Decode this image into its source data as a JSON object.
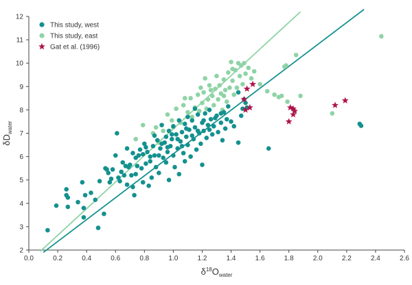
{
  "chart_data": {
    "type": "scatter",
    "title": "",
    "xlabel": {
      "main": "δ",
      "sup": "18",
      "main2": "O",
      "sub": "water"
    },
    "ylabel": {
      "main": "δD",
      "sub": "water"
    },
    "xlim": [
      0,
      2.6
    ],
    "ylim": [
      2,
      12
    ],
    "x_ticks": [
      "0.0",
      "0.2",
      "0.4",
      "0.6",
      "0.8",
      "1.0",
      "1.2",
      "1.4",
      "1.6",
      "1.8",
      "2.0",
      "2.2",
      "2.4",
      "2.6"
    ],
    "y_ticks": [
      "2",
      "3",
      "4",
      "5",
      "6",
      "7",
      "8",
      "9",
      "10",
      "11",
      "12"
    ],
    "grid": false,
    "legend_position": "top-left",
    "series": [
      {
        "name": "This study, west",
        "marker": "circle",
        "color": "#14918e",
        "points": [
          [
            0.13,
            2.85
          ],
          [
            0.19,
            3.9
          ],
          [
            0.26,
            4.6
          ],
          [
            0.26,
            4.35
          ],
          [
            0.27,
            3.85
          ],
          [
            0.27,
            4.25
          ],
          [
            0.37,
            4.9
          ],
          [
            0.38,
            3.4
          ],
          [
            0.39,
            4.35
          ],
          [
            0.34,
            4.05
          ],
          [
            0.38,
            3.8
          ],
          [
            0.43,
            4.45
          ],
          [
            0.48,
            2.95
          ],
          [
            0.49,
            4.95
          ],
          [
            0.52,
            3.55
          ],
          [
            0.53,
            5.5
          ],
          [
            0.54,
            5.45
          ],
          [
            0.55,
            5.3
          ],
          [
            0.56,
            4.9
          ],
          [
            0.58,
            5.45
          ],
          [
            0.6,
            6.05
          ],
          [
            0.61,
            7.0
          ],
          [
            0.62,
            5.1
          ],
          [
            0.63,
            4.95
          ],
          [
            0.64,
            5.35
          ],
          [
            0.66,
            5.2
          ],
          [
            0.67,
            5.6
          ],
          [
            0.68,
            6.35
          ],
          [
            0.68,
            4.8
          ],
          [
            0.7,
            5.65
          ],
          [
            0.71,
            5.2
          ],
          [
            0.72,
            4.7
          ],
          [
            0.73,
            4.35
          ],
          [
            0.74,
            5.95
          ],
          [
            0.75,
            5.6
          ],
          [
            0.76,
            6.05
          ],
          [
            0.77,
            6.3
          ],
          [
            0.78,
            5.5
          ],
          [
            0.79,
            4.9
          ],
          [
            0.8,
            6.55
          ],
          [
            0.81,
            5.7
          ],
          [
            0.82,
            6.2
          ],
          [
            0.83,
            4.75
          ],
          [
            0.84,
            6.0
          ],
          [
            0.85,
            5.1
          ],
          [
            0.86,
            6.45
          ],
          [
            0.87,
            6.9
          ],
          [
            0.88,
            5.55
          ],
          [
            0.89,
            6.7
          ],
          [
            0.9,
            6.05
          ],
          [
            0.9,
            5.3
          ],
          [
            0.91,
            6.35
          ],
          [
            0.92,
            7.35
          ],
          [
            0.93,
            5.95
          ],
          [
            0.94,
            6.6
          ],
          [
            0.95,
            6.85
          ],
          [
            0.95,
            5.75
          ],
          [
            0.96,
            6.2
          ],
          [
            0.97,
            7.1
          ],
          [
            0.97,
            5.0
          ],
          [
            0.98,
            6.45
          ],
          [
            0.99,
            6.75
          ],
          [
            1.0,
            7.3
          ],
          [
            1.0,
            6.05
          ],
          [
            1.01,
            5.55
          ],
          [
            1.02,
            6.95
          ],
          [
            1.03,
            6.35
          ],
          [
            1.04,
            7.55
          ],
          [
            1.04,
            5.25
          ],
          [
            1.05,
            6.65
          ],
          [
            1.06,
            7.05
          ],
          [
            1.07,
            6.15
          ],
          [
            1.08,
            7.4
          ],
          [
            1.08,
            5.8
          ],
          [
            1.09,
            6.85
          ],
          [
            1.1,
            7.7
          ],
          [
            1.1,
            6.5
          ],
          [
            1.11,
            7.15
          ],
          [
            1.12,
            6.0
          ],
          [
            1.13,
            7.55
          ],
          [
            1.14,
            6.75
          ],
          [
            1.15,
            8.05
          ],
          [
            1.15,
            7.25
          ],
          [
            1.16,
            6.3
          ],
          [
            1.17,
            7.8
          ],
          [
            1.18,
            7.0
          ],
          [
            1.19,
            6.55
          ],
          [
            1.2,
            7.45
          ],
          [
            1.2,
            5.65
          ],
          [
            1.21,
            7.1
          ],
          [
            1.22,
            7.85
          ],
          [
            1.23,
            6.8
          ],
          [
            1.24,
            7.35
          ],
          [
            1.25,
            8.0
          ],
          [
            1.26,
            7.6
          ],
          [
            1.27,
            6.95
          ],
          [
            1.28,
            7.3
          ],
          [
            1.3,
            7.75
          ],
          [
            1.31,
            7.05
          ],
          [
            1.33,
            7.45
          ],
          [
            1.34,
            6.7
          ],
          [
            1.35,
            7.9
          ],
          [
            1.36,
            7.2
          ],
          [
            1.38,
            8.15
          ],
          [
            1.4,
            7.5
          ],
          [
            1.42,
            7.3
          ],
          [
            1.45,
            6.6
          ],
          [
            1.47,
            7.75
          ],
          [
            1.48,
            8.05
          ],
          [
            1.49,
            8.45
          ],
          [
            1.5,
            8.3
          ],
          [
            1.51,
            8.1
          ],
          [
            1.45,
            8.75
          ],
          [
            1.66,
            6.35
          ],
          [
            2.29,
            7.4
          ],
          [
            2.3,
            7.32
          ],
          [
            0.46,
            4.15
          ],
          [
            0.57,
            5.05
          ],
          [
            0.65,
            5.75
          ],
          [
            0.69,
            5.55
          ],
          [
            0.72,
            6.15
          ],
          [
            0.74,
            5.25
          ],
          [
            0.79,
            6.1
          ],
          [
            0.81,
            6.4
          ],
          [
            0.84,
            5.8
          ],
          [
            0.87,
            6.05
          ],
          [
            0.92,
            6.55
          ],
          [
            0.96,
            6.4
          ],
          [
            0.99,
            6.95
          ],
          [
            1.03,
            6.75
          ],
          [
            1.06,
            6.45
          ],
          [
            1.09,
            7.2
          ],
          [
            1.13,
            6.9
          ],
          [
            1.17,
            7.1
          ],
          [
            1.21,
            7.55
          ],
          [
            1.25,
            7.15
          ],
          [
            1.29,
            7.65
          ],
          [
            1.33,
            7.85
          ],
          [
            1.37,
            7.6
          ]
        ]
      },
      {
        "name": "This study, east",
        "marker": "circle",
        "color": "#8fd3a6",
        "points": [
          [
            0.74,
            6.75
          ],
          [
            0.79,
            7.35
          ],
          [
            0.86,
            7.0
          ],
          [
            0.9,
            6.6
          ],
          [
            0.93,
            7.1
          ],
          [
            0.96,
            7.8
          ],
          [
            0.99,
            7.55
          ],
          [
            1.02,
            8.05
          ],
          [
            1.05,
            7.45
          ],
          [
            1.07,
            8.2
          ],
          [
            1.1,
            7.9
          ],
          [
            1.12,
            8.5
          ],
          [
            1.13,
            7.7
          ],
          [
            1.15,
            8.1
          ],
          [
            1.17,
            8.65
          ],
          [
            1.18,
            7.95
          ],
          [
            1.2,
            8.3
          ],
          [
            1.21,
            8.75
          ],
          [
            1.23,
            8.05
          ],
          [
            1.24,
            8.45
          ],
          [
            1.25,
            9.05
          ],
          [
            1.27,
            8.6
          ],
          [
            1.28,
            8.2
          ],
          [
            1.29,
            8.9
          ],
          [
            1.3,
            9.45
          ],
          [
            1.31,
            8.45
          ],
          [
            1.32,
            9.05
          ],
          [
            1.33,
            8.7
          ],
          [
            1.34,
            8.0
          ],
          [
            1.35,
            9.3
          ],
          [
            1.36,
            8.85
          ],
          [
            1.37,
            8.35
          ],
          [
            1.38,
            9.6
          ],
          [
            1.39,
            8.95
          ],
          [
            1.4,
            10.05
          ],
          [
            1.41,
            9.25
          ],
          [
            1.42,
            8.65
          ],
          [
            1.43,
            9.7
          ],
          [
            1.44,
            8.95
          ],
          [
            1.45,
            10.0
          ],
          [
            1.46,
            9.45
          ],
          [
            1.47,
            9.9
          ],
          [
            1.48,
            9.1
          ],
          [
            1.49,
            10.0
          ],
          [
            1.5,
            9.55
          ],
          [
            1.52,
            9.8
          ],
          [
            1.54,
            9.35
          ],
          [
            1.56,
            9.65
          ],
          [
            1.6,
            9.1
          ],
          [
            1.65,
            8.8
          ],
          [
            1.7,
            8.65
          ],
          [
            1.73,
            8.55
          ],
          [
            1.75,
            8.6
          ],
          [
            1.79,
            8.35
          ],
          [
            1.88,
            8.6
          ],
          [
            1.84,
            7.95
          ],
          [
            2.1,
            7.85
          ],
          [
            1.77,
            9.85
          ],
          [
            1.78,
            9.9
          ],
          [
            1.85,
            10.35
          ],
          [
            2.44,
            11.15
          ],
          [
            1.26,
            8.85
          ],
          [
            1.35,
            8.6
          ],
          [
            1.22,
            9.35
          ],
          [
            1.19,
            8.95
          ],
          [
            1.41,
            9.75
          ],
          [
            0.88,
            7.25
          ],
          [
            1.0,
            7.25
          ],
          [
            1.08,
            8.5
          ]
        ]
      },
      {
        "name": "Gat et al. (1996)",
        "marker": "star",
        "color": "#b0134b",
        "points": [
          [
            1.51,
            8.9
          ],
          [
            1.55,
            9.1
          ],
          [
            1.49,
            8.45
          ],
          [
            1.53,
            8.1
          ],
          [
            1.5,
            8.0
          ],
          [
            1.81,
            8.1
          ],
          [
            1.83,
            8.05
          ],
          [
            1.84,
            7.95
          ],
          [
            1.83,
            7.8
          ],
          [
            1.8,
            7.5
          ],
          [
            2.12,
            8.2
          ],
          [
            2.19,
            8.4
          ]
        ]
      }
    ],
    "lines": [
      {
        "series": "This study, west",
        "color": "#14918e",
        "from": [
          0.1,
          1.9
        ],
        "to": [
          2.32,
          12.3
        ]
      },
      {
        "series": "This study, east",
        "color": "#8fd3a6",
        "from": [
          0.08,
          1.95
        ],
        "to": [
          1.88,
          12.2
        ]
      }
    ]
  }
}
